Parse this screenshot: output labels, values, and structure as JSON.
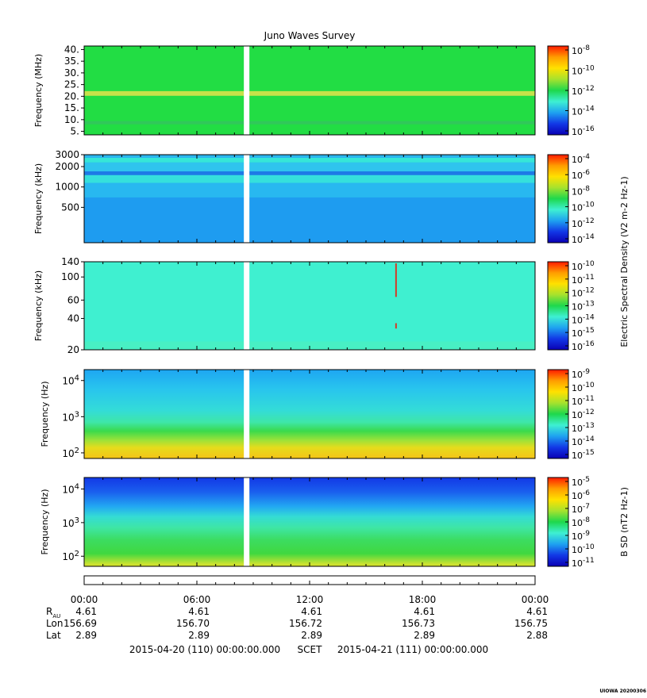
{
  "title": "Juno Waves Survey",
  "gap_time_hours": 8.5,
  "chart_data": [
    {
      "type": "heatmap",
      "name": "panel-1",
      "ylabel": "Frequency (MHz)",
      "yscale": "linear",
      "ylim": [
        3.5,
        41.5
      ],
      "yticks": [
        {
          "v": 5,
          "label": "5."
        },
        {
          "v": 10,
          "label": "10."
        },
        {
          "v": 15,
          "label": "15."
        },
        {
          "v": 20,
          "label": "20."
        },
        {
          "v": 25,
          "label": "25."
        },
        {
          "v": 30,
          "label": "30."
        },
        {
          "v": 35,
          "label": "35."
        },
        {
          "v": 40,
          "label": "40."
        }
      ],
      "bands": [
        {
          "lo": 3.5,
          "hi": 41.5,
          "color": "#22dd44"
        },
        {
          "lo": 20.2,
          "hi": 22.2,
          "color": "#c6e24a"
        },
        {
          "lo": 8.0,
          "hi": 9.4,
          "color": "#30c85a"
        }
      ],
      "colorbar": {
        "ticks": [
          {
            "base": "10",
            "exp": "-8"
          },
          {
            "base": "10",
            "exp": "-10"
          },
          {
            "base": "10",
            "exp": "-12"
          },
          {
            "base": "10",
            "exp": "-14"
          },
          {
            "base": "10",
            "exp": "-16"
          }
        ],
        "label": null
      }
    },
    {
      "type": "heatmap",
      "name": "panel-2",
      "ylabel": "Frequency (kHz)",
      "yscale": "log",
      "ylim": [
        150,
        3000
      ],
      "yticks": [
        {
          "v": 500,
          "label": "500"
        },
        {
          "v": 1000,
          "label": "1000"
        },
        {
          "v": 2000,
          "label": "2000"
        },
        {
          "v": 3000,
          "label": "3000"
        }
      ],
      "bands": [
        {
          "lo": 150,
          "hi": 3000,
          "color": "#1e9cf0"
        },
        {
          "lo": 700,
          "hi": 1200,
          "color": "#28b8f0"
        },
        {
          "lo": 1150,
          "hi": 1500,
          "color": "#35e0dc"
        },
        {
          "lo": 1500,
          "hi": 1700,
          "color": "#1e7ae6"
        },
        {
          "lo": 1700,
          "hi": 2300,
          "color": "#2fc4ee"
        },
        {
          "lo": 2300,
          "hi": 2700,
          "color": "#36e6d8"
        },
        {
          "lo": 2700,
          "hi": 3000,
          "color": "#2ab6ee"
        }
      ],
      "colorbar": {
        "ticks": [
          {
            "base": "10",
            "exp": "-4"
          },
          {
            "base": "10",
            "exp": "-6"
          },
          {
            "base": "10",
            "exp": "-8"
          },
          {
            "base": "10",
            "exp": "-10"
          },
          {
            "base": "10",
            "exp": "-12"
          },
          {
            "base": "10",
            "exp": "-14"
          }
        ],
        "label": "Electric Spectral Density (V2 m-2 Hz-1)"
      }
    },
    {
      "type": "heatmap",
      "name": "panel-3",
      "ylabel": "Frequency (kHz)",
      "yscale": "log",
      "ylim": [
        20,
        140
      ],
      "yticks": [
        {
          "v": 20,
          "label": "20"
        },
        {
          "v": 40,
          "label": "40"
        },
        {
          "v": 60,
          "label": "60"
        },
        {
          "v": 100,
          "label": "100"
        },
        {
          "v": 140,
          "label": "140"
        }
      ],
      "bands": [
        {
          "lo": 20,
          "hi": 140,
          "color": "#3ff0d0"
        },
        {
          "lo": 20,
          "hi": 24,
          "color": "#48f0c4"
        }
      ],
      "spike": {
        "t": 16.6,
        "color": "#d33c28"
      },
      "colorbar": {
        "ticks": [
          {
            "base": "10",
            "exp": "-10"
          },
          {
            "base": "10",
            "exp": "-11"
          },
          {
            "base": "10",
            "exp": "-12"
          },
          {
            "base": "10",
            "exp": "-13"
          },
          {
            "base": "10",
            "exp": "-14"
          },
          {
            "base": "10",
            "exp": "-15"
          },
          {
            "base": "10",
            "exp": "-16"
          }
        ],
        "label": null
      }
    },
    {
      "type": "heatmap",
      "name": "panel-4",
      "ylabel": "Frequency (Hz)",
      "yscale": "log",
      "ylim": [
        70,
        20000
      ],
      "yticks": [
        {
          "v": 100,
          "label": "10",
          "exp": "2"
        },
        {
          "v": 1000,
          "label": "10",
          "exp": "3"
        },
        {
          "v": 10000,
          "label": "10",
          "exp": "4"
        }
      ],
      "gradient": [
        {
          "f": 20000,
          "color": "#1ea6f2"
        },
        {
          "f": 6000,
          "color": "#28c4ee"
        },
        {
          "f": 1500,
          "color": "#33dcd8"
        },
        {
          "f": 700,
          "color": "#3ee6a8"
        },
        {
          "f": 400,
          "color": "#3ada4c"
        },
        {
          "f": 220,
          "color": "#9ee238"
        },
        {
          "f": 140,
          "color": "#e6dc1c"
        },
        {
          "f": 70,
          "color": "#f4c418"
        }
      ],
      "colorbar": {
        "ticks": [
          {
            "base": "10",
            "exp": "-9"
          },
          {
            "base": "10",
            "exp": "-10"
          },
          {
            "base": "10",
            "exp": "-11"
          },
          {
            "base": "10",
            "exp": "-12"
          },
          {
            "base": "10",
            "exp": "-13"
          },
          {
            "base": "10",
            "exp": "-14"
          },
          {
            "base": "10",
            "exp": "-15"
          }
        ],
        "label": null
      }
    },
    {
      "type": "heatmap",
      "name": "panel-5",
      "ylabel": "Frequency (Hz)",
      "yscale": "log",
      "ylim": [
        50,
        22000
      ],
      "yticks": [
        {
          "v": 100,
          "label": "10",
          "exp": "2"
        },
        {
          "v": 1000,
          "label": "10",
          "exp": "3"
        },
        {
          "v": 10000,
          "label": "10",
          "exp": "4"
        }
      ],
      "gradient": [
        {
          "f": 22000,
          "color": "#1238e6"
        },
        {
          "f": 8000,
          "color": "#1a60ee"
        },
        {
          "f": 3000,
          "color": "#22a8f2"
        },
        {
          "f": 1500,
          "color": "#34dcd4"
        },
        {
          "f": 700,
          "color": "#3ee6a4"
        },
        {
          "f": 300,
          "color": "#3cdc60"
        },
        {
          "f": 120,
          "color": "#40d840"
        },
        {
          "f": 60,
          "color": "#c8e232"
        },
        {
          "f": 50,
          "color": "#d8e22a"
        }
      ],
      "colorbar": {
        "ticks": [
          {
            "base": "10",
            "exp": "-5"
          },
          {
            "base": "10",
            "exp": "-6"
          },
          {
            "base": "10",
            "exp": "-7"
          },
          {
            "base": "10",
            "exp": "-8"
          },
          {
            "base": "10",
            "exp": "-9"
          },
          {
            "base": "10",
            "exp": "-10"
          },
          {
            "base": "10",
            "exp": "-11"
          }
        ],
        "label": "B SD (nT2 Hz-1)"
      }
    }
  ],
  "colorscale": [
    "#ff1a00",
    "#ff9d00",
    "#ffe100",
    "#a6e22e",
    "#1ed84c",
    "#3ef0d2",
    "#1ea2f0",
    "#1238e6",
    "#0a00b4"
  ],
  "time_axis": {
    "ticks": [
      "00:00",
      "06:00",
      "12:00",
      "18:00",
      "00:00"
    ],
    "rows": [
      {
        "label": "R",
        "sub": "AU",
        "values": [
          "4.61",
          "4.61",
          "4.61",
          "4.61",
          "4.61"
        ]
      },
      {
        "label": "Lon",
        "values": [
          "156.69",
          "156.70",
          "156.72",
          "156.73",
          "156.75"
        ]
      },
      {
        "label": "Lat",
        "values": [
          "2.89",
          "2.89",
          "2.89",
          "2.89",
          "2.88"
        ]
      }
    ],
    "footer": {
      "start": "2015-04-20 (110) 00:00:00.000",
      "scet": "SCET",
      "end": "2015-04-21 (111) 00:00:00.000"
    }
  },
  "watermark": "UIOWA 20200306"
}
